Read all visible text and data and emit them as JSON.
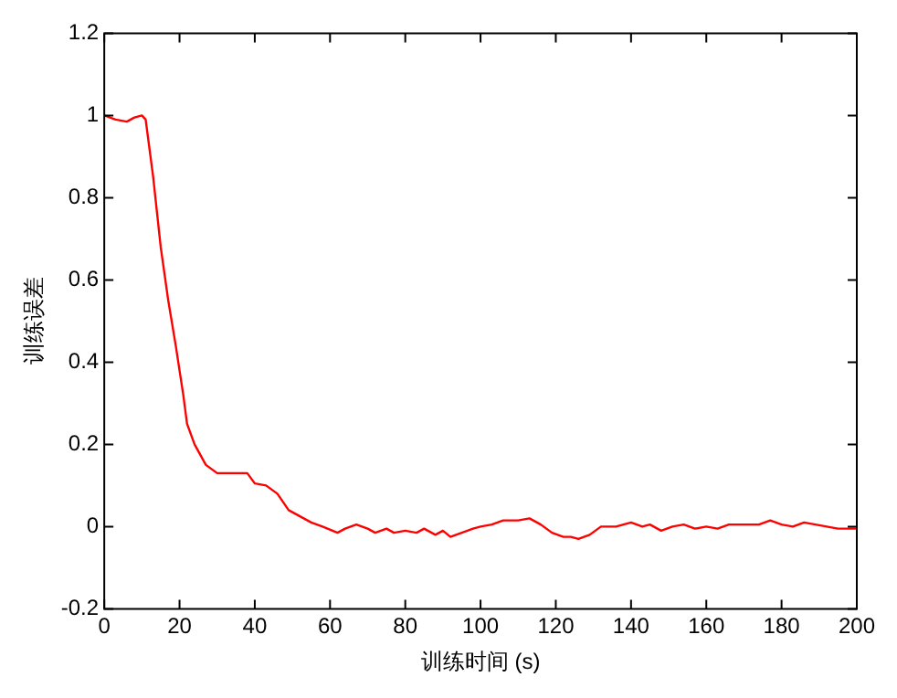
{
  "chart_data": {
    "type": "line",
    "xlabel": "训练时间 (s)",
    "ylabel": "训练误差",
    "xlim": [
      0,
      200
    ],
    "xticks": [
      0,
      20,
      40,
      60,
      80,
      100,
      120,
      140,
      160,
      180,
      200
    ],
    "ylim": [
      -0.2,
      1.2
    ],
    "yticks": [
      -0.2,
      0,
      0.2,
      0.4,
      0.6,
      0.8,
      1,
      1.2
    ],
    "grid": false,
    "legend": false,
    "marker": "none",
    "line_style": "solid",
    "series": [
      {
        "color": "#ff0000",
        "x": [
          0,
          3,
          6,
          8,
          10,
          11,
          13,
          15,
          17,
          19,
          21,
          22,
          24,
          27,
          30,
          33,
          36,
          38,
          40,
          43,
          46,
          49,
          52,
          55,
          58,
          62,
          64,
          67,
          70,
          72,
          75,
          77,
          80,
          83,
          85,
          88,
          90,
          92,
          95,
          98,
          100,
          103,
          106,
          110,
          113,
          116,
          119,
          122,
          124,
          126,
          129,
          132,
          136,
          140,
          143,
          145,
          148,
          151,
          154,
          157,
          160,
          163,
          166,
          170,
          174,
          177,
          180,
          183,
          186,
          189,
          192,
          195,
          197,
          200
        ],
        "values": [
          1.0,
          0.99,
          0.985,
          0.995,
          1.0,
          0.99,
          0.85,
          0.68,
          0.55,
          0.44,
          0.32,
          0.25,
          0.2,
          0.15,
          0.13,
          0.13,
          0.13,
          0.13,
          0.105,
          0.1,
          0.08,
          0.04,
          0.025,
          0.01,
          0,
          -0.015,
          -0.005,
          0.005,
          -0.005,
          -0.015,
          -0.005,
          -0.015,
          -0.01,
          -0.015,
          -0.005,
          -0.02,
          -0.01,
          -0.025,
          -0.015,
          -0.005,
          0,
          0.005,
          0.015,
          0.015,
          0.02,
          0.005,
          -0.015,
          -0.025,
          -0.025,
          -0.03,
          -0.02,
          0,
          0,
          0.01,
          0,
          0.005,
          -0.01,
          0,
          0.005,
          -0.005,
          0,
          -0.005,
          0.005,
          0.005,
          0.005,
          0.015,
          0.005,
          0,
          0.01,
          0.005,
          0,
          -0.005,
          -0.005,
          -0.005
        ]
      }
    ]
  }
}
